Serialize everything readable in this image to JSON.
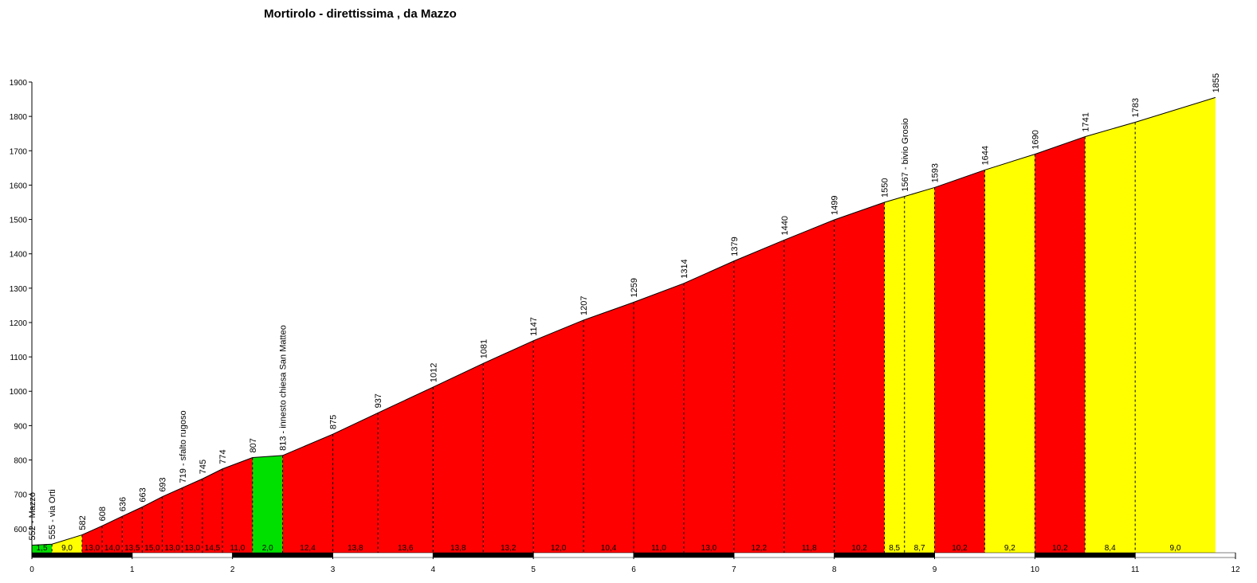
{
  "chart_data": {
    "type": "area",
    "title": "Mortirolo - direttissima , da Mazzo",
    "x": [
      0,
      0.2,
      0.5,
      0.7,
      0.9,
      1.1,
      1.3,
      1.5,
      1.7,
      1.9,
      2.2,
      2.5,
      3.0,
      3.45,
      4.0,
      4.5,
      5.0,
      5.5,
      6.0,
      6.5,
      7.0,
      7.5,
      8.0,
      8.5,
      8.7,
      9.0,
      9.5,
      10.0,
      10.5,
      11.0,
      11.8
    ],
    "values": [
      552,
      555,
      582,
      608,
      636,
      663,
      693,
      719,
      745,
      774,
      807,
      813,
      875,
      937,
      1012,
      1081,
      1147,
      1207,
      1259,
      1314,
      1379,
      1440,
      1499,
      1550,
      1567,
      1593,
      1644,
      1690,
      1741,
      1783,
      1855
    ],
    "value_labels": [
      "552 - Mazzo",
      "555 - via Orti",
      "582",
      "608",
      "636",
      "663",
      "693",
      "719 - sfalto rugoso",
      "745",
      "774",
      "807",
      "813 - innesto chiesa San Matteo",
      "875",
      "937",
      "1012",
      "1081",
      "1147",
      "1207",
      "1259",
      "1314",
      "1379",
      "1440",
      "1499",
      "1550",
      "1567 - bivio Grosio",
      "1593",
      "1644",
      "1690",
      "1741",
      "1783",
      "1855"
    ],
    "segment_values": [
      1.5,
      9.0,
      13.0,
      14.0,
      13.5,
      15.0,
      13.0,
      13.0,
      14.5,
      11.0,
      2.0,
      12.4,
      13.8,
      13.6,
      13.8,
      13.2,
      12.0,
      10.4,
      11.0,
      13.0,
      12.2,
      11.8,
      10.2,
      8.5,
      8.7,
      10.2,
      9.2,
      10.2,
      8.4,
      9.0
    ],
    "segment_labels": [
      "1,5",
      "9,0",
      "13,0",
      "14,0",
      "13,5",
      "15,0",
      "13,0",
      "13,0",
      "14,5",
      "11,0",
      "2,0",
      "12,4",
      "13,8",
      "13,6",
      "13,8",
      "13,2",
      "12,0",
      "10,4",
      "11,0",
      "13,0",
      "12,2",
      "11,8",
      "10,2",
      "8,5",
      "8,7",
      "10,2",
      "9,2",
      "10,2",
      "8,4",
      "9,0"
    ],
    "segment_colors": [
      "#00e000",
      "#ffff00",
      "#ff0000",
      "#ff0000",
      "#ff0000",
      "#ff0000",
      "#ff0000",
      "#ff0000",
      "#ff0000",
      "#ff0000",
      "#00e000",
      "#ff0000",
      "#ff0000",
      "#ff0000",
      "#ff0000",
      "#ff0000",
      "#ff0000",
      "#ff0000",
      "#ff0000",
      "#ff0000",
      "#ff0000",
      "#ff0000",
      "#ff0000",
      "#ffff00",
      "#ffff00",
      "#ff0000",
      "#ffff00",
      "#ff0000",
      "#ffff00",
      "#ffff00"
    ],
    "xlim": [
      0,
      12
    ],
    "ylim": [
      530,
      1900
    ],
    "xticks": [
      0,
      1,
      2,
      3,
      4,
      5,
      6,
      7,
      8,
      9,
      10,
      11,
      12
    ],
    "yticks": [
      600,
      700,
      800,
      900,
      1000,
      1100,
      1200,
      1300,
      1400,
      1500,
      1600,
      1700,
      1800,
      1900
    ]
  }
}
